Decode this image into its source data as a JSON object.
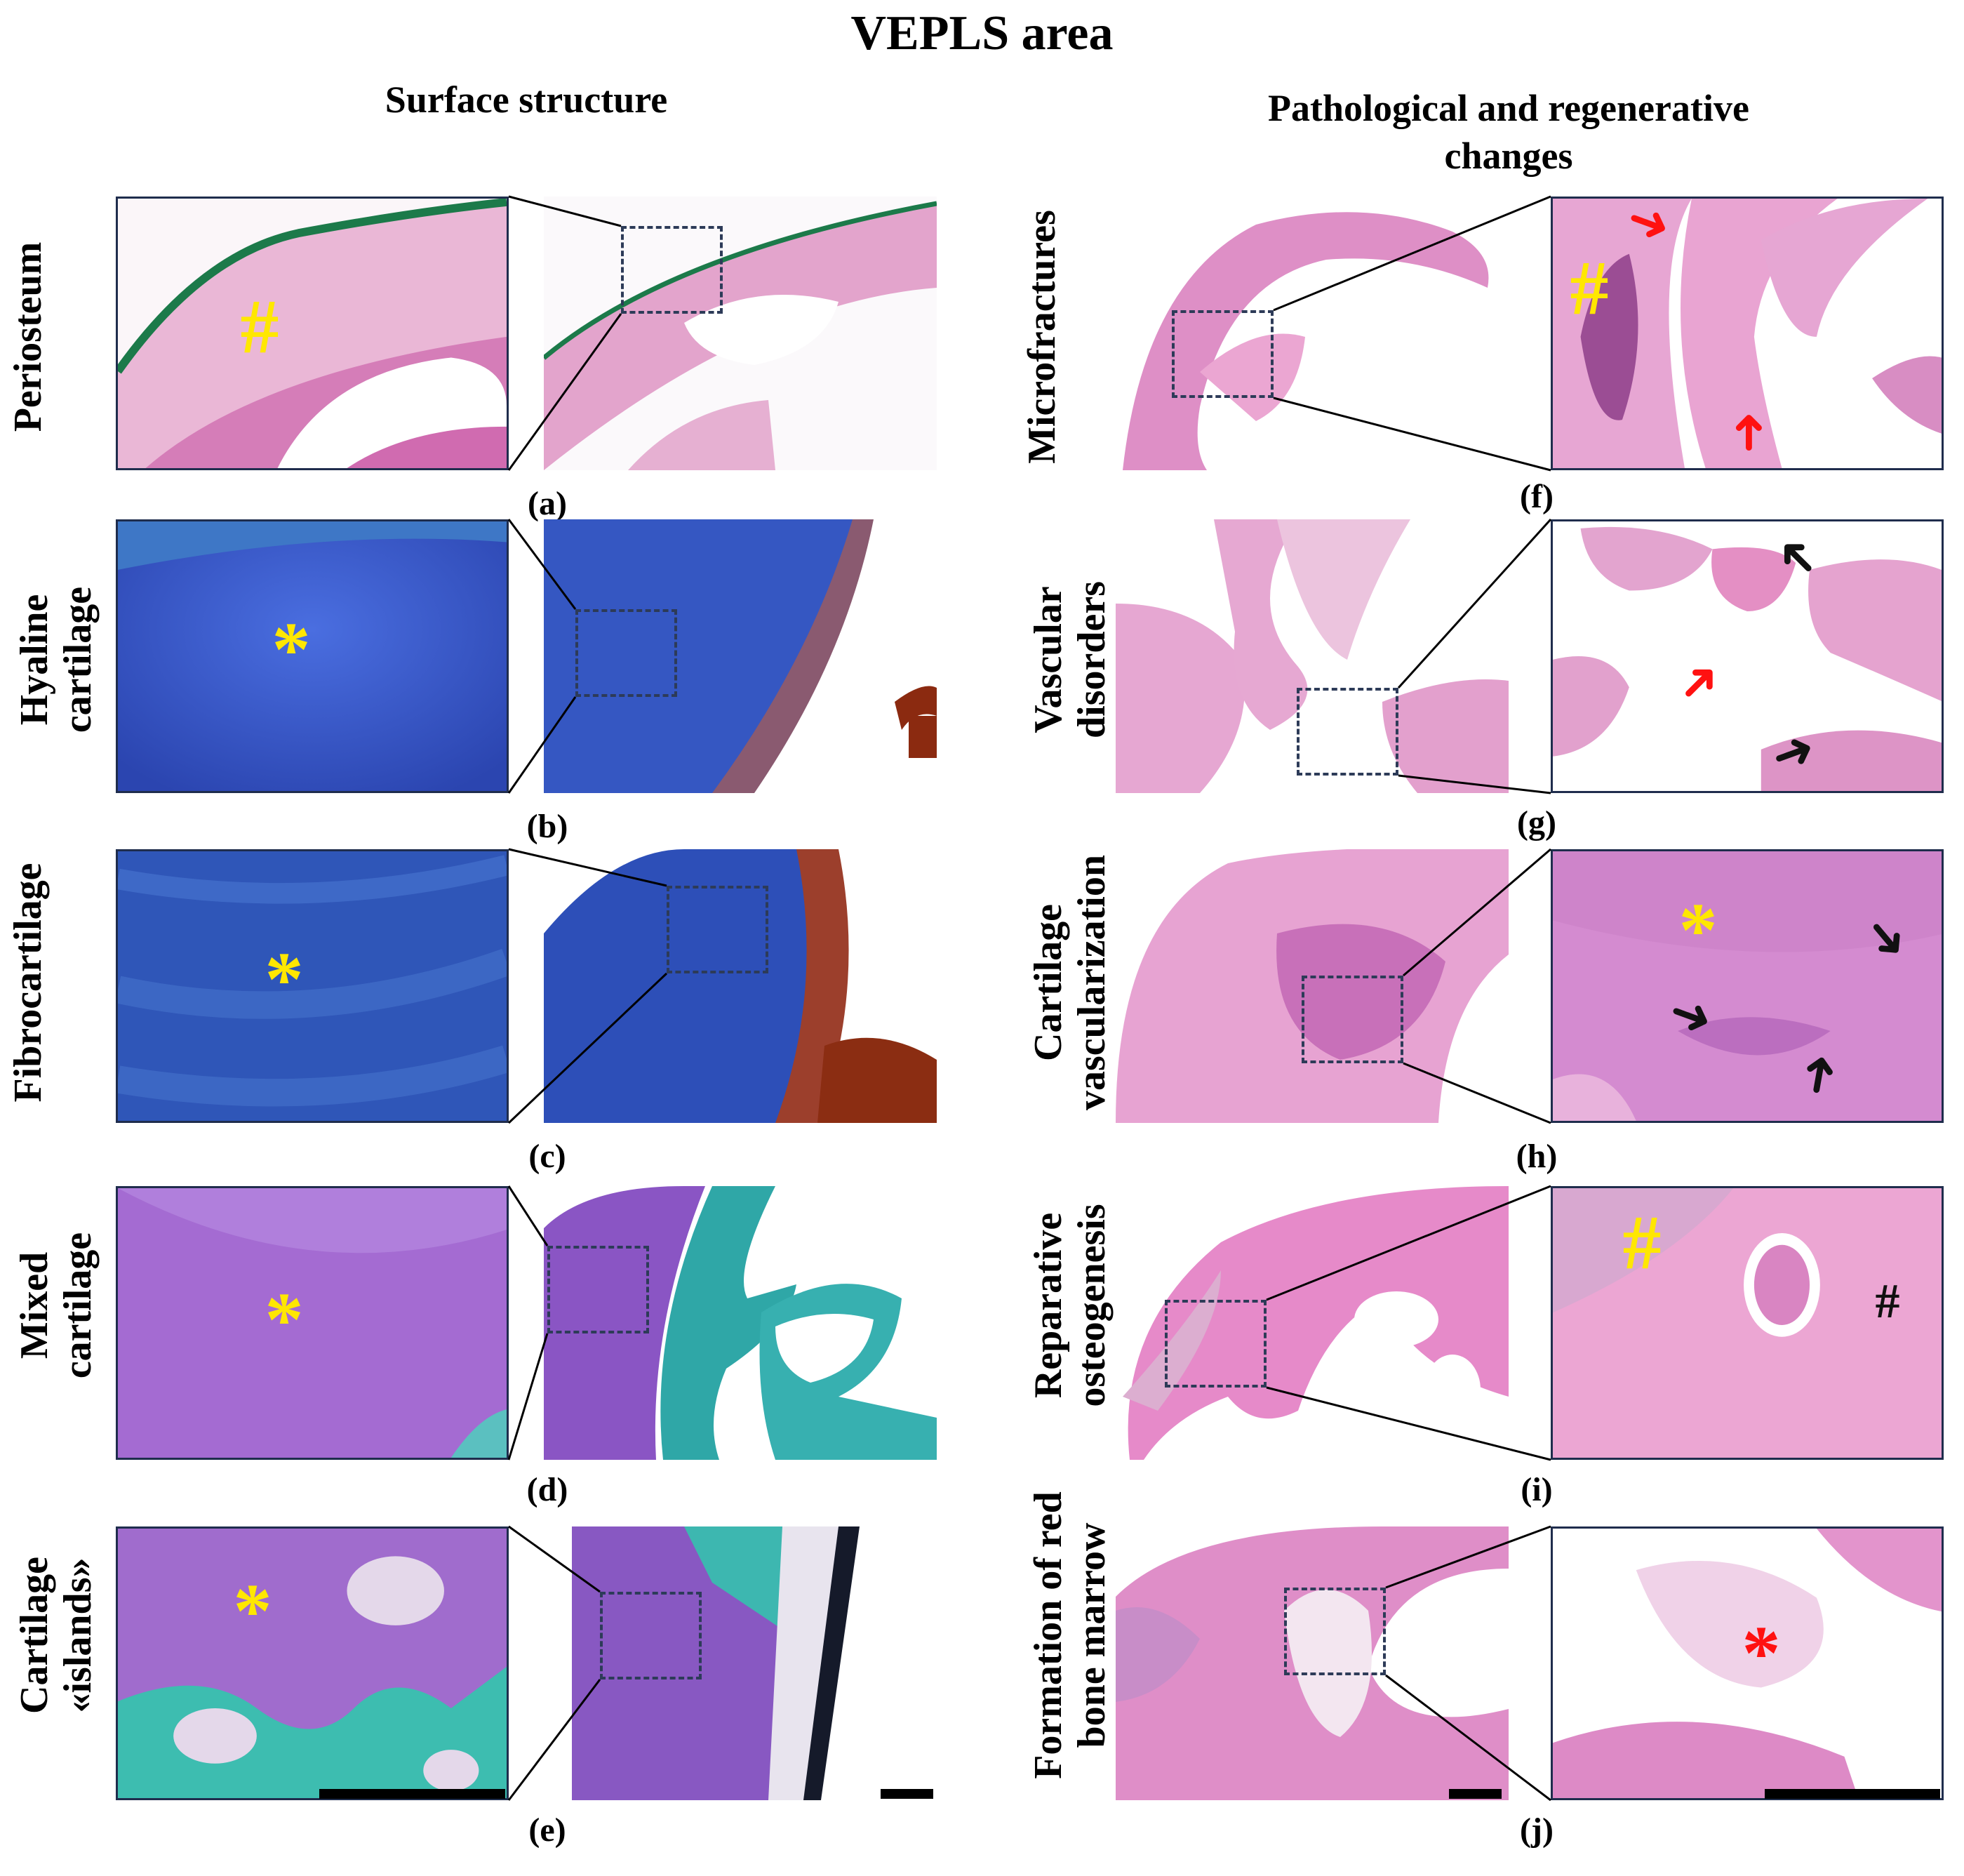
{
  "figure_title": "VEPLS area",
  "columns": {
    "left_header": "Surface structure",
    "right_header_line1": "Pathological and regenerative",
    "right_header_line2": "changes"
  },
  "left_rows": [
    {
      "label": "Periosteum",
      "label2": "",
      "letter": "(a)",
      "stain": "he",
      "marker": "#"
    },
    {
      "label": "Hyaline",
      "label2": "cartilage",
      "letter": "(b)",
      "stain": "blue",
      "marker": "*"
    },
    {
      "label": "Fibrocartilage",
      "label2": "",
      "letter": "(c)",
      "stain": "blue",
      "marker": "*"
    },
    {
      "label": "Mixed",
      "label2": "cartilage",
      "letter": "(d)",
      "stain": "purple",
      "marker": "*"
    },
    {
      "label": "Cartilage",
      "label2": "«islands»",
      "letter": "(e)",
      "stain": "purple",
      "marker": "*"
    }
  ],
  "right_rows": [
    {
      "label": "Microfractures",
      "label2": "",
      "letter": "(f)",
      "stain": "he",
      "marker": "#"
    },
    {
      "label": "Vascular",
      "label2": "disorders",
      "letter": "(g)",
      "stain": "he",
      "marker": ""
    },
    {
      "label": "Cartilage",
      "label2": "vascularization",
      "letter": "(h)",
      "stain": "he",
      "marker": "*"
    },
    {
      "label": "Reparative",
      "label2": "osteogenesis",
      "letter": "(i)",
      "stain": "he",
      "marker": "#"
    },
    {
      "label": "Formation of red",
      "label2": "bone marrow",
      "letter": "(j)",
      "stain": "he",
      "marker": "*"
    }
  ],
  "extra_markers": {
    "i_black": "#"
  },
  "colors": {
    "he_pink": "#e9a8cf",
    "he_dark": "#c561a6",
    "blue_stain": "#3b5bc4",
    "purple_stain": "#a067cf",
    "teal_stain": "#3cb2b2",
    "marker_yellow": "#ffe700",
    "marker_red": "#ff1111",
    "frame": "#1f2d4d"
  },
  "icons": {
    "arrow": "arrow-icon",
    "scale_bar": "scale-bar"
  }
}
